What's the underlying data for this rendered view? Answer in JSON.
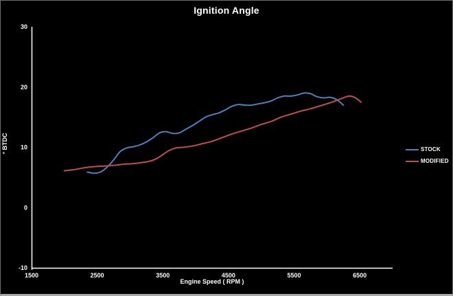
{
  "window": {
    "background": "#000000",
    "frame_border_color": "#6f6f6f",
    "frame_bottom_edge_color": "#a9a9a9"
  },
  "chart_data": {
    "type": "line",
    "title": "Ignition Angle",
    "xlabel": "Engine Speed ( RPM )",
    "ylabel": "° BTDC",
    "xlim": [
      1500,
      7000
    ],
    "ylim": [
      -10,
      30
    ],
    "xticks": [
      1500,
      2500,
      3500,
      4500,
      5500,
      6500
    ],
    "yticks": [
      30,
      20,
      10,
      0,
      -10
    ],
    "grid": false,
    "legend_position": "right-outside",
    "axis_color": "#ffffff",
    "text_color": "#ffffff",
    "line_width": 2,
    "smooth": true,
    "series": [
      {
        "name": "STOCK",
        "color": "#4f81bd",
        "points": [
          [
            2350,
            5.9
          ],
          [
            2450,
            5.7
          ],
          [
            2550,
            5.9
          ],
          [
            2650,
            6.7
          ],
          [
            2750,
            7.9
          ],
          [
            2850,
            9.3
          ],
          [
            2950,
            9.9
          ],
          [
            3050,
            10.1
          ],
          [
            3150,
            10.4
          ],
          [
            3250,
            10.9
          ],
          [
            3350,
            11.6
          ],
          [
            3450,
            12.4
          ],
          [
            3550,
            12.6
          ],
          [
            3650,
            12.3
          ],
          [
            3750,
            12.4
          ],
          [
            3850,
            13.0
          ],
          [
            3950,
            13.6
          ],
          [
            4050,
            14.3
          ],
          [
            4150,
            15.0
          ],
          [
            4250,
            15.4
          ],
          [
            4350,
            15.7
          ],
          [
            4450,
            16.2
          ],
          [
            4550,
            16.8
          ],
          [
            4650,
            17.1
          ],
          [
            4750,
            17.0
          ],
          [
            4850,
            17.0
          ],
          [
            4950,
            17.2
          ],
          [
            5050,
            17.4
          ],
          [
            5150,
            17.7
          ],
          [
            5250,
            18.2
          ],
          [
            5350,
            18.5
          ],
          [
            5450,
            18.5
          ],
          [
            5550,
            18.7
          ],
          [
            5650,
            19.0
          ],
          [
            5750,
            18.9
          ],
          [
            5850,
            18.4
          ],
          [
            5950,
            18.2
          ],
          [
            6050,
            18.3
          ],
          [
            6150,
            17.9
          ],
          [
            6250,
            17.0
          ]
        ]
      },
      {
        "name": "MODIFIED",
        "color": "#c0504d",
        "points": [
          [
            2000,
            6.1
          ],
          [
            2150,
            6.3
          ],
          [
            2300,
            6.6
          ],
          [
            2450,
            6.8
          ],
          [
            2600,
            6.9
          ],
          [
            2750,
            7.0
          ],
          [
            2900,
            7.2
          ],
          [
            3050,
            7.3
          ],
          [
            3200,
            7.5
          ],
          [
            3300,
            7.7
          ],
          [
            3400,
            8.1
          ],
          [
            3500,
            8.8
          ],
          [
            3600,
            9.5
          ],
          [
            3700,
            9.9
          ],
          [
            3800,
            10.0
          ],
          [
            3950,
            10.2
          ],
          [
            4100,
            10.6
          ],
          [
            4250,
            11.0
          ],
          [
            4400,
            11.6
          ],
          [
            4550,
            12.2
          ],
          [
            4700,
            12.7
          ],
          [
            4850,
            13.2
          ],
          [
            5000,
            13.8
          ],
          [
            5150,
            14.3
          ],
          [
            5300,
            15.0
          ],
          [
            5450,
            15.5
          ],
          [
            5600,
            16.0
          ],
          [
            5750,
            16.4
          ],
          [
            5900,
            16.9
          ],
          [
            6050,
            17.4
          ],
          [
            6200,
            18.0
          ],
          [
            6330,
            18.5
          ],
          [
            6420,
            18.3
          ],
          [
            6520,
            17.5
          ]
        ]
      }
    ]
  }
}
